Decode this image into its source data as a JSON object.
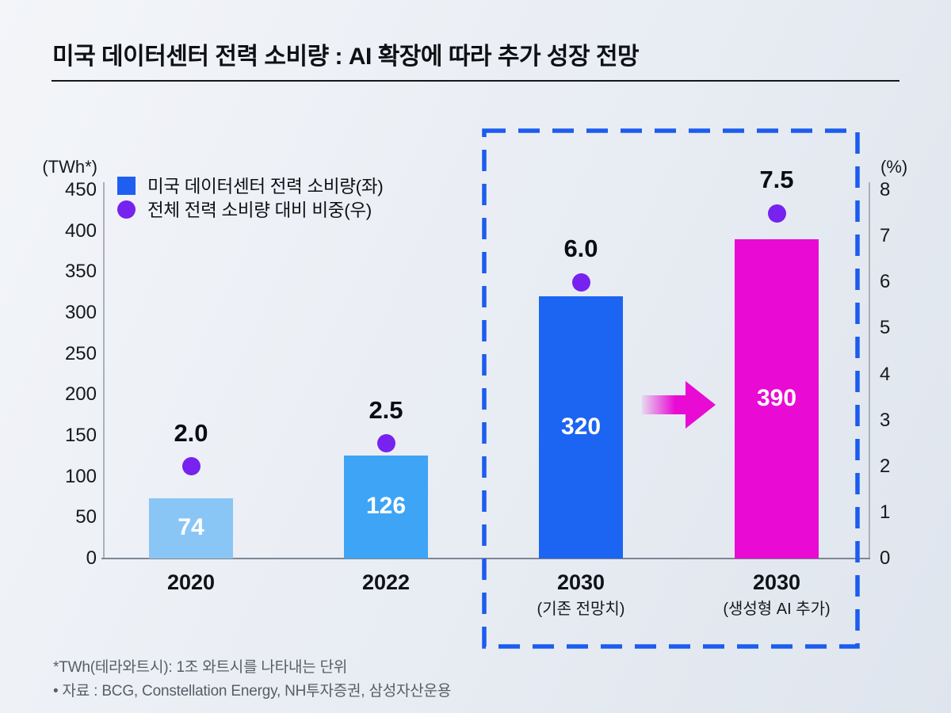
{
  "title": "미국 데이터센터 전력 소비량 : AI 확장에 따라 추가 성장 전망",
  "legend": {
    "items": [
      {
        "marker": "square",
        "color": "#1E5FF2",
        "label": "미국 데이터센터 전력 소비량(좌)"
      },
      {
        "marker": "circle",
        "color": "#7722EE",
        "label": "전체 전력 소비량 대비 비중(우)"
      }
    ]
  },
  "footnotes": {
    "line1": "*TWh(테라와트시): 1조 와트시를 나타내는 단위",
    "line2": "• 자료 : BCG, Constellation Energy, NH투자증권, 삼성자산운용"
  },
  "chart_data": {
    "type": "bar",
    "title": "미국 데이터센터 전력 소비량 : AI 확장에 따라 추가 성장 전망",
    "categories": [
      "2020",
      "2022",
      "2030",
      "2030"
    ],
    "category_notes": [
      "",
      "",
      "(기존 전망치)",
      "(생성형 AI 추가)"
    ],
    "series": [
      {
        "name": "미국 데이터센터 전력 소비량(좌)",
        "type": "bar",
        "axis": "left",
        "values": [
          74,
          126,
          320,
          390
        ],
        "value_labels": [
          "74",
          "126",
          "320",
          "390"
        ],
        "bar_colors": [
          "#8AC6F5",
          "#3EA4F5",
          "#1C64F2",
          "#E90AD4"
        ]
      },
      {
        "name": "전체 전력 소비량 대비 비중(우)",
        "type": "scatter",
        "axis": "right",
        "values": [
          2.0,
          2.5,
          6.0,
          7.5
        ],
        "value_labels": [
          "2.0",
          "2.5",
          "6.0",
          "7.5"
        ],
        "marker_color": "#7722EE"
      }
    ],
    "left_axis": {
      "unit": "(TWh*)",
      "min": 0,
      "max": 450,
      "tick_step": 50,
      "ticks": [
        0,
        50,
        100,
        150,
        200,
        250,
        300,
        350,
        400,
        450
      ]
    },
    "right_axis": {
      "unit": "(%)",
      "min": 0,
      "max": 8,
      "tick_step": 1,
      "ticks": [
        0,
        1,
        2,
        3,
        4,
        5,
        6,
        7,
        8
      ]
    },
    "grid": false,
    "legend_position": "top-left",
    "highlight_box": {
      "over_categories": [
        "2030 (기존 전망치)",
        "2030 (생성형 AI 추가)"
      ],
      "border_color": "#1C5CEE",
      "style": "dashed"
    },
    "arrow": {
      "from_value": 320,
      "to_value": 390,
      "color": "#E90AD4",
      "direction": "right"
    }
  }
}
